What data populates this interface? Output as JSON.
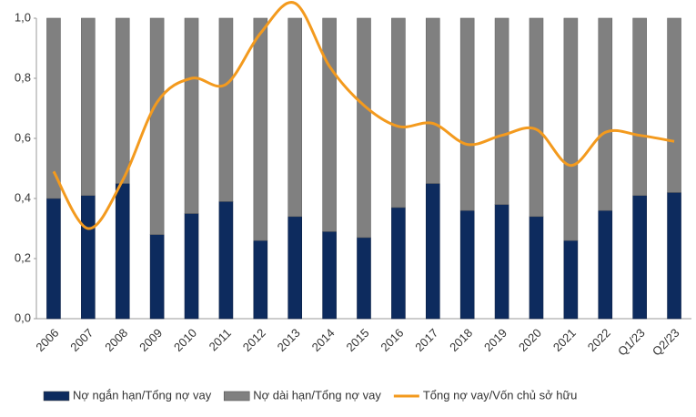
{
  "chart_data": {
    "type": "bar",
    "stacked": true,
    "categories": [
      "2006",
      "2007",
      "2008",
      "2009",
      "2010",
      "2011",
      "2012",
      "2013",
      "2014",
      "2015",
      "2016",
      "2017",
      "2018",
      "2019",
      "2020",
      "2021",
      "2022",
      "Q1/23",
      "Q2/23"
    ],
    "series": [
      {
        "name": "Nợ ngắn hạn/Tổng nợ vay",
        "color": "#0d2b5e",
        "type": "bar",
        "values": [
          0.4,
          0.41,
          0.45,
          0.28,
          0.35,
          0.39,
          0.26,
          0.34,
          0.29,
          0.27,
          0.37,
          0.45,
          0.36,
          0.38,
          0.34,
          0.26,
          0.36,
          0.41,
          0.42
        ]
      },
      {
        "name": "Nợ dài hạn/Tổng nợ vay",
        "color": "#808080",
        "type": "bar",
        "values": [
          0.6,
          0.59,
          0.55,
          0.72,
          0.65,
          0.61,
          0.74,
          0.66,
          0.71,
          0.73,
          0.63,
          0.55,
          0.64,
          0.62,
          0.66,
          0.74,
          0.64,
          0.59,
          0.58
        ]
      },
      {
        "name": "Tổng nợ vay/Vốn chủ sở hữu",
        "color": "#f39a1e",
        "type": "line",
        "values": [
          0.49,
          0.3,
          0.46,
          0.72,
          0.8,
          0.78,
          0.95,
          1.05,
          0.84,
          0.71,
          0.64,
          0.65,
          0.58,
          0.61,
          0.63,
          0.51,
          0.62,
          0.61,
          0.59
        ]
      }
    ],
    "ylim": [
      0,
      1.0
    ],
    "yticks": [
      {
        "value": 0,
        "label": "0,0"
      },
      {
        "value": 0.2,
        "label": "0,2"
      },
      {
        "value": 0.4,
        "label": "0,4"
      },
      {
        "value": 0.6,
        "label": "0,6"
      },
      {
        "value": 0.8,
        "label": "0,8"
      },
      {
        "value": 1.0,
        "label": "1,0"
      }
    ],
    "legend": "bottom"
  }
}
